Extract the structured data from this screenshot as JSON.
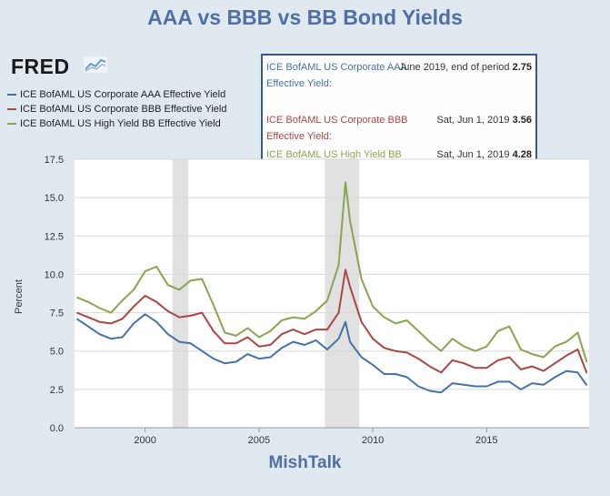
{
  "title": "AAA vs BBB vs BB Bond Yields",
  "brand": {
    "text": "FRED",
    "icon": "chart-line-icon"
  },
  "footer": "MishTalk",
  "legend": [
    {
      "label": "ICE BofAML US Corporate AAA Effective Yield",
      "color": "#4572a7"
    },
    {
      "label": "ICE BofAML US Corporate BBB Effective Yield",
      "color": "#aa4643"
    },
    {
      "label": "ICE BofAML US High Yield BB Effective Yield",
      "color": "#89a54e"
    }
  ],
  "tooltip": [
    {
      "name": "ICE BofAML US Corporate AAA Effective Yield:",
      "date": "June 2019, end of period",
      "value": "2.75",
      "color": "#4572a7"
    },
    {
      "name": "ICE BofAML US Corporate BBB Effective Yield:",
      "date": "Sat, Jun 1, 2019",
      "value": "3.56",
      "color": "#aa4643"
    },
    {
      "name": "ICE BofAML US High Yield BB Effective Yield:",
      "date": "Sat, Jun 1, 2019",
      "value": "4.28",
      "color": "#89a54e"
    }
  ],
  "chart_data": {
    "type": "line",
    "ylabel": "Percent",
    "xlabel": "",
    "xlim": [
      1996.9,
      2019.5
    ],
    "ylim": [
      0,
      17.5
    ],
    "yticks": [
      "0.0",
      "2.5",
      "5.0",
      "7.5",
      "10.0",
      "12.5",
      "15.0",
      "17.5"
    ],
    "xticks": [
      "2000",
      "2005",
      "2010",
      "2015"
    ],
    "xtick_values": [
      2000,
      2005,
      2010,
      2015
    ],
    "ytick_values": [
      0,
      2.5,
      5,
      7.5,
      10,
      12.5,
      15,
      17.5
    ],
    "grid": "horizontal",
    "recessions": [
      [
        2001.2,
        2001.9
      ],
      [
        2007.9,
        2009.4
      ]
    ],
    "series": [
      {
        "name": "ICE BofAML US Corporate AAA Effective Yield",
        "color": "#4572a7",
        "x": [
          1997,
          1997.5,
          1998,
          1998.5,
          1999,
          1999.5,
          2000,
          2000.5,
          2001,
          2001.5,
          2002,
          2002.5,
          2003,
          2003.5,
          2004,
          2004.5,
          2005,
          2005.5,
          2006,
          2006.5,
          2007,
          2007.5,
          2008,
          2008.5,
          2008.8,
          2009,
          2009.5,
          2010,
          2010.5,
          2011,
          2011.5,
          2012,
          2012.5,
          2013,
          2013.5,
          2014,
          2014.5,
          2015,
          2015.5,
          2016,
          2016.5,
          2017,
          2017.5,
          2018,
          2018.5,
          2019,
          2019.4
        ],
        "values": [
          7.1,
          6.6,
          6.1,
          5.8,
          5.9,
          6.8,
          7.4,
          6.9,
          6.1,
          5.6,
          5.5,
          5.0,
          4.5,
          4.2,
          4.3,
          4.8,
          4.5,
          4.6,
          5.2,
          5.6,
          5.4,
          5.7,
          5.1,
          5.8,
          6.9,
          5.6,
          4.6,
          4.1,
          3.5,
          3.5,
          3.3,
          2.7,
          2.4,
          2.3,
          2.9,
          2.8,
          2.7,
          2.7,
          3.0,
          3.0,
          2.5,
          2.9,
          2.8,
          3.3,
          3.7,
          3.6,
          2.75
        ]
      },
      {
        "name": "ICE BofAML US Corporate BBB Effective Yield",
        "color": "#aa4643",
        "x": [
          1997,
          1997.5,
          1998,
          1998.5,
          1999,
          1999.5,
          2000,
          2000.5,
          2001,
          2001.5,
          2002,
          2002.5,
          2003,
          2003.5,
          2004,
          2004.5,
          2005,
          2005.5,
          2006,
          2006.5,
          2007,
          2007.5,
          2008,
          2008.5,
          2008.8,
          2009,
          2009.5,
          2010,
          2010.5,
          2011,
          2011.5,
          2012,
          2012.5,
          2013,
          2013.5,
          2014,
          2014.5,
          2015,
          2015.5,
          2016,
          2016.5,
          2017,
          2017.5,
          2018,
          2018.5,
          2019,
          2019.4
        ],
        "values": [
          7.5,
          7.2,
          6.9,
          6.8,
          7.1,
          7.9,
          8.6,
          8.2,
          7.6,
          7.2,
          7.3,
          7.5,
          6.3,
          5.5,
          5.5,
          5.9,
          5.3,
          5.4,
          6.1,
          6.4,
          6.1,
          6.4,
          6.4,
          7.5,
          10.3,
          9.2,
          6.9,
          5.8,
          5.2,
          5.0,
          4.9,
          4.5,
          4.0,
          3.6,
          4.4,
          4.2,
          3.9,
          3.9,
          4.4,
          4.6,
          3.8,
          4.0,
          3.7,
          4.2,
          4.7,
          5.1,
          3.56
        ]
      },
      {
        "name": "ICE BofAML US High Yield BB Effective Yield",
        "color": "#89a54e",
        "x": [
          1997,
          1997.5,
          1998,
          1998.5,
          1999,
          1999.5,
          2000,
          2000.5,
          2001,
          2001.5,
          2002,
          2002.5,
          2003,
          2003.5,
          2004,
          2004.5,
          2005,
          2005.5,
          2006,
          2006.5,
          2007,
          2007.5,
          2008,
          2008.5,
          2008.8,
          2009,
          2009.5,
          2010,
          2010.5,
          2011,
          2011.5,
          2012,
          2012.5,
          2013,
          2013.5,
          2014,
          2014.5,
          2015,
          2015.5,
          2016,
          2016.5,
          2017,
          2017.5,
          2018,
          2018.5,
          2019,
          2019.4
        ],
        "values": [
          8.5,
          8.2,
          7.8,
          7.5,
          8.3,
          9.0,
          10.2,
          10.5,
          9.3,
          9.0,
          9.6,
          9.7,
          8.0,
          6.2,
          6.0,
          6.5,
          5.9,
          6.3,
          7.0,
          7.2,
          7.1,
          7.6,
          8.3,
          10.6,
          16.0,
          13.5,
          9.7,
          7.9,
          7.2,
          6.8,
          7.0,
          6.3,
          5.6,
          5.0,
          5.8,
          5.3,
          5.0,
          5.3,
          6.3,
          6.6,
          5.1,
          4.8,
          4.6,
          5.3,
          5.6,
          6.2,
          4.28
        ]
      }
    ]
  }
}
